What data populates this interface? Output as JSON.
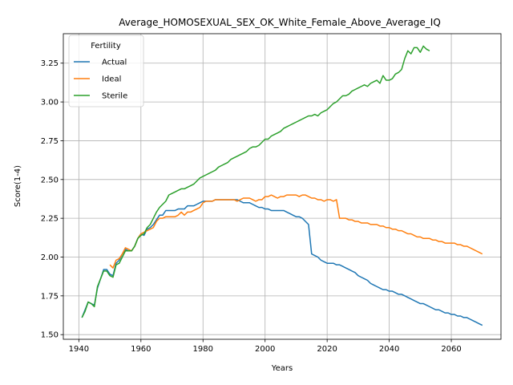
{
  "chart_data": {
    "type": "line",
    "title": "Average_HOMOSEXUAL_SEX_OK_White_Female_Above_Average_IQ",
    "xlabel": "Years",
    "ylabel": "Score(1-4)",
    "xlim": [
      1935,
      2076
    ],
    "ylim": [
      1.47,
      3.44
    ],
    "xticks": [
      1940,
      1960,
      1980,
      2000,
      2020,
      2040,
      2060
    ],
    "yticks": [
      1.5,
      1.75,
      2.0,
      2.25,
      2.5,
      2.75,
      3.0,
      3.25
    ],
    "grid": true,
    "legend": {
      "title": "Fertility",
      "placement": "top-left"
    },
    "series": [
      {
        "name": "Actual",
        "color": "#1f77b4",
        "x": [
          1941,
          1942,
          1943,
          1944,
          1945,
          1946,
          1947,
          1948,
          1949,
          1950,
          1951,
          1952,
          1953,
          1954,
          1955,
          1956,
          1957,
          1958,
          1959,
          1960,
          1961,
          1962,
          1963,
          1964,
          1965,
          1966,
          1967,
          1968,
          1969,
          1970,
          1971,
          1972,
          1973,
          1974,
          1975,
          1976,
          1977,
          1978,
          1979,
          1980,
          1981,
          1982,
          1983,
          1984,
          1985,
          1986,
          1987,
          1988,
          1989,
          1990,
          1991,
          1992,
          1993,
          1994,
          1995,
          1996,
          1997,
          1998,
          1999,
          2000,
          2001,
          2002,
          2003,
          2004,
          2005,
          2006,
          2007,
          2008,
          2009,
          2010,
          2011,
          2012,
          2013,
          2014,
          2015,
          2016,
          2017,
          2018,
          2019,
          2020,
          2021,
          2022,
          2023,
          2024,
          2025,
          2026,
          2027,
          2028,
          2029,
          2030,
          2031,
          2032,
          2033,
          2034,
          2035,
          2036,
          2037,
          2038,
          2039,
          2040,
          2041,
          2042,
          2043,
          2044,
          2045,
          2046,
          2047,
          2048,
          2049,
          2050,
          2051,
          2052,
          2053,
          2054,
          2055,
          2056,
          2057,
          2058,
          2059,
          2060,
          2061,
          2062,
          2063,
          2064,
          2065,
          2066,
          2067,
          2068,
          2069,
          2070
        ],
        "values": [
          1.61,
          1.66,
          1.71,
          1.7,
          1.69,
          1.8,
          1.86,
          1.92,
          1.92,
          1.89,
          1.88,
          1.96,
          1.98,
          2.02,
          2.05,
          2.04,
          2.04,
          2.07,
          2.12,
          2.15,
          2.14,
          2.18,
          2.19,
          2.21,
          2.24,
          2.27,
          2.27,
          2.3,
          2.3,
          2.3,
          2.3,
          2.31,
          2.31,
          2.31,
          2.33,
          2.33,
          2.33,
          2.34,
          2.35,
          2.36,
          2.36,
          2.36,
          2.36,
          2.37,
          2.37,
          2.37,
          2.37,
          2.37,
          2.37,
          2.37,
          2.37,
          2.36,
          2.35,
          2.35,
          2.35,
          2.34,
          2.33,
          2.32,
          2.32,
          2.31,
          2.31,
          2.3,
          2.3,
          2.3,
          2.3,
          2.3,
          2.29,
          2.28,
          2.27,
          2.26,
          2.26,
          2.25,
          2.23,
          2.21,
          2.02,
          2.01,
          2.0,
          1.98,
          1.97,
          1.96,
          1.96,
          1.96,
          1.95,
          1.95,
          1.94,
          1.93,
          1.92,
          1.91,
          1.9,
          1.88,
          1.87,
          1.86,
          1.85,
          1.83,
          1.82,
          1.81,
          1.8,
          1.79,
          1.79,
          1.78,
          1.78,
          1.77,
          1.76,
          1.76,
          1.75,
          1.74,
          1.73,
          1.72,
          1.71,
          1.7,
          1.7,
          1.69,
          1.68,
          1.67,
          1.66,
          1.66,
          1.65,
          1.64,
          1.64,
          1.63,
          1.63,
          1.62,
          1.62,
          1.61,
          1.61,
          1.6,
          1.59,
          1.58,
          1.57,
          1.56
        ]
      },
      {
        "name": "Ideal",
        "color": "#ff7f0e",
        "x": [
          1950,
          1951,
          1952,
          1953,
          1954,
          1955,
          1956,
          1957,
          1958,
          1959,
          1960,
          1961,
          1962,
          1963,
          1964,
          1965,
          1966,
          1967,
          1968,
          1969,
          1970,
          1971,
          1972,
          1973,
          1974,
          1975,
          1976,
          1977,
          1978,
          1979,
          1980,
          1981,
          1982,
          1983,
          1984,
          1985,
          1986,
          1987,
          1988,
          1989,
          1990,
          1991,
          1992,
          1993,
          1994,
          1995,
          1996,
          1997,
          1998,
          1999,
          2000,
          2001,
          2002,
          2003,
          2004,
          2005,
          2006,
          2007,
          2008,
          2009,
          2010,
          2011,
          2012,
          2013,
          2014,
          2015,
          2016,
          2017,
          2018,
          2019,
          2020,
          2021,
          2022,
          2023,
          2024,
          2025,
          2026,
          2027,
          2028,
          2029,
          2030,
          2031,
          2032,
          2033,
          2034,
          2035,
          2036,
          2037,
          2038,
          2039,
          2040,
          2041,
          2042,
          2043,
          2044,
          2045,
          2046,
          2047,
          2048,
          2049,
          2050,
          2051,
          2052,
          2053,
          2054,
          2055,
          2056,
          2057,
          2058,
          2059,
          2060,
          2061,
          2062,
          2063,
          2064,
          2065,
          2066,
          2067,
          2068,
          2069,
          2070
        ],
        "values": [
          1.95,
          1.93,
          1.98,
          1.99,
          2.02,
          2.06,
          2.05,
          2.04,
          2.07,
          2.12,
          2.15,
          2.16,
          2.17,
          2.18,
          2.19,
          2.23,
          2.25,
          2.25,
          2.26,
          2.26,
          2.26,
          2.26,
          2.27,
          2.29,
          2.27,
          2.29,
          2.29,
          2.3,
          2.31,
          2.32,
          2.35,
          2.36,
          2.36,
          2.36,
          2.37,
          2.37,
          2.37,
          2.37,
          2.37,
          2.37,
          2.37,
          2.36,
          2.37,
          2.38,
          2.38,
          2.38,
          2.37,
          2.36,
          2.37,
          2.37,
          2.39,
          2.39,
          2.4,
          2.39,
          2.38,
          2.39,
          2.39,
          2.4,
          2.4,
          2.4,
          2.4,
          2.39,
          2.4,
          2.4,
          2.39,
          2.38,
          2.38,
          2.37,
          2.37,
          2.36,
          2.37,
          2.37,
          2.36,
          2.37,
          2.25,
          2.25,
          2.25,
          2.24,
          2.24,
          2.23,
          2.23,
          2.22,
          2.22,
          2.22,
          2.21,
          2.21,
          2.21,
          2.2,
          2.2,
          2.19,
          2.19,
          2.18,
          2.18,
          2.17,
          2.17,
          2.16,
          2.15,
          2.15,
          2.14,
          2.13,
          2.13,
          2.12,
          2.12,
          2.12,
          2.11,
          2.11,
          2.1,
          2.1,
          2.09,
          2.09,
          2.09,
          2.09,
          2.08,
          2.08,
          2.07,
          2.07,
          2.06,
          2.05,
          2.04,
          2.03,
          2.02
        ]
      },
      {
        "name": "Sterile",
        "color": "#2ca02c",
        "x": [
          1941,
          1942,
          1943,
          1944,
          1945,
          1946,
          1947,
          1948,
          1949,
          1950,
          1951,
          1952,
          1953,
          1954,
          1955,
          1956,
          1957,
          1958,
          1959,
          1960,
          1961,
          1962,
          1963,
          1964,
          1965,
          1966,
          1967,
          1968,
          1969,
          1970,
          1971,
          1972,
          1973,
          1974,
          1975,
          1976,
          1977,
          1978,
          1979,
          1980,
          1981,
          1982,
          1983,
          1984,
          1985,
          1986,
          1987,
          1988,
          1989,
          1990,
          1991,
          1992,
          1993,
          1994,
          1995,
          1996,
          1997,
          1998,
          1999,
          2000,
          2001,
          2002,
          2003,
          2004,
          2005,
          2006,
          2007,
          2008,
          2009,
          2010,
          2011,
          2012,
          2013,
          2014,
          2015,
          2016,
          2017,
          2018,
          2019,
          2020,
          2021,
          2022,
          2023,
          2024,
          2025,
          2026,
          2027,
          2028,
          2029,
          2030,
          2031,
          2032,
          2033,
          2034,
          2035,
          2036,
          2037,
          2038,
          2039,
          2040,
          2041,
          2042,
          2043,
          2044,
          2045,
          2046,
          2047,
          2048,
          2049,
          2050,
          2051,
          2052,
          2053
        ],
        "values": [
          1.61,
          1.65,
          1.71,
          1.7,
          1.68,
          1.81,
          1.86,
          1.91,
          1.91,
          1.88,
          1.87,
          1.95,
          1.96,
          2.0,
          2.04,
          2.04,
          2.04,
          2.07,
          2.12,
          2.14,
          2.15,
          2.19,
          2.21,
          2.25,
          2.29,
          2.32,
          2.34,
          2.36,
          2.4,
          2.41,
          2.42,
          2.43,
          2.44,
          2.44,
          2.45,
          2.46,
          2.47,
          2.49,
          2.51,
          2.52,
          2.53,
          2.54,
          2.55,
          2.56,
          2.58,
          2.59,
          2.6,
          2.61,
          2.63,
          2.64,
          2.65,
          2.66,
          2.67,
          2.68,
          2.7,
          2.71,
          2.71,
          2.72,
          2.74,
          2.76,
          2.76,
          2.78,
          2.79,
          2.8,
          2.81,
          2.83,
          2.84,
          2.85,
          2.86,
          2.87,
          2.88,
          2.89,
          2.9,
          2.91,
          2.91,
          2.92,
          2.91,
          2.93,
          2.94,
          2.95,
          2.97,
          2.99,
          3.0,
          3.02,
          3.04,
          3.04,
          3.05,
          3.07,
          3.08,
          3.09,
          3.1,
          3.11,
          3.1,
          3.12,
          3.13,
          3.14,
          3.12,
          3.17,
          3.14,
          3.14,
          3.15,
          3.18,
          3.19,
          3.21,
          3.28,
          3.33,
          3.31,
          3.35,
          3.35,
          3.32,
          3.36,
          3.34,
          3.33
        ]
      }
    ]
  }
}
